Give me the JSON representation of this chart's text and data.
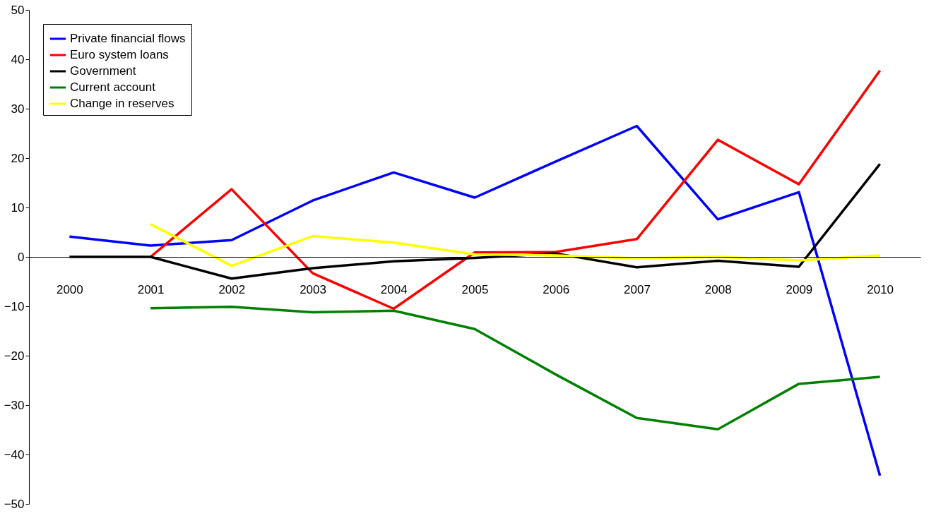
{
  "chart_data": {
    "type": "line",
    "categories": [
      "2000",
      "2001",
      "2002",
      "2003",
      "2004",
      "2005",
      "2006",
      "2007",
      "2008",
      "2009",
      "2010"
    ],
    "ylim": [
      -50,
      50
    ],
    "yticks": [
      -50,
      -40,
      -30,
      -20,
      -10,
      0,
      10,
      20,
      30,
      40,
      50
    ],
    "grid": false,
    "legend": "top left",
    "marker": "none",
    "line_style": "solid",
    "series": [
      {
        "name": "Private financial flows",
        "color": "#0000ff",
        "values": [
          4.1,
          2.3,
          3.4,
          11.4,
          17.1,
          12.0,
          19.3,
          26.5,
          7.6,
          13.1,
          -44.3
        ]
      },
      {
        "name": "Euro system loans",
        "color": "#ff0000",
        "values": [
          null,
          0,
          13.7,
          -3.3,
          -10.5,
          0.9,
          1.0,
          3.6,
          23.7,
          14.7,
          37.7
        ]
      },
      {
        "name": "Government",
        "color": "#000000",
        "values": [
          0,
          0,
          -4.4,
          -2.3,
          -0.9,
          -0.2,
          0.7,
          -2.1,
          -0.8,
          -2.0,
          18.8
        ]
      },
      {
        "name": "Current account",
        "color": "#008000",
        "values": [
          null,
          -10.4,
          -10.1,
          -11.2,
          -10.9,
          -14.6,
          -23.8,
          -32.6,
          -34.9,
          -25.7,
          -24.3
        ]
      },
      {
        "name": "Change in reserves",
        "color": "#ffff00",
        "values": [
          null,
          6.6,
          -1.8,
          4.2,
          2.9,
          0.5,
          0.3,
          -0.3,
          0.0,
          -0.7,
          0.3
        ]
      }
    ]
  }
}
